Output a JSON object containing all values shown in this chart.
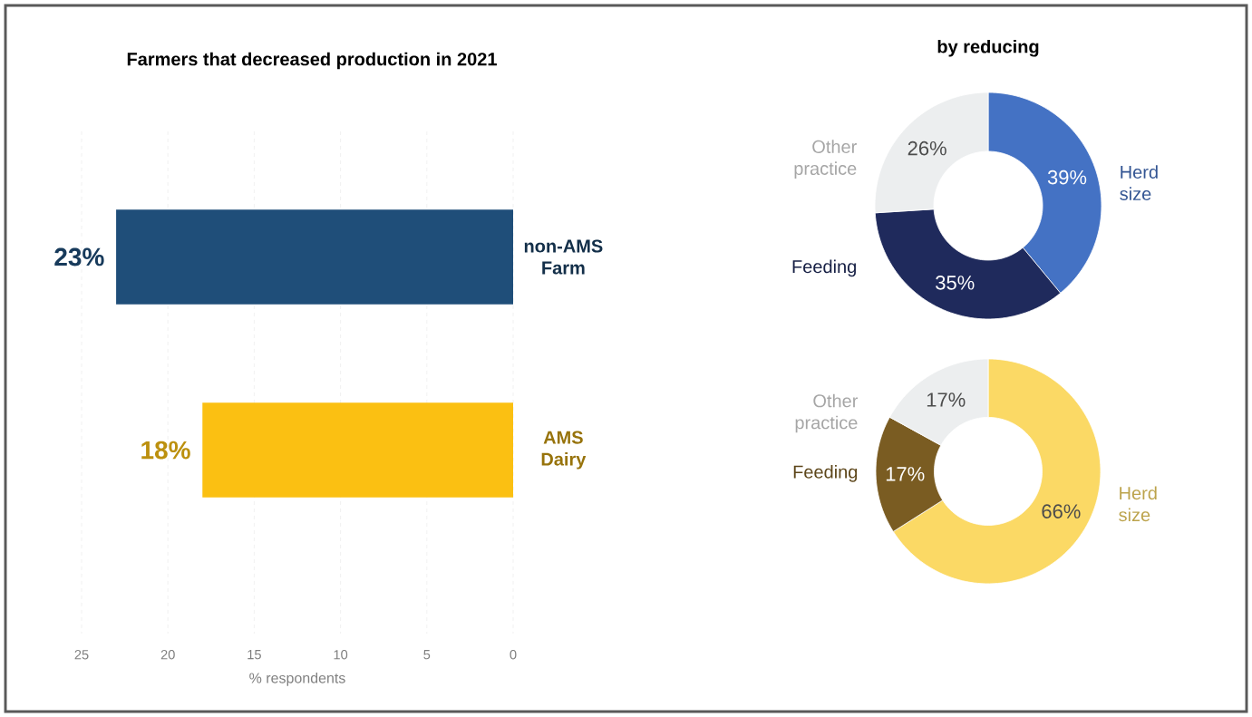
{
  "chart_data": [
    {
      "type": "bar",
      "orientation": "horizontal",
      "title": "Farmers that decreased production in 2021",
      "categories": [
        "non-AMS Farm",
        "AMS Dairy"
      ],
      "values": [
        23,
        18
      ],
      "colors": [
        "#1f4e79",
        "#fbc012"
      ],
      "value_labels": [
        "23%",
        "18%"
      ],
      "xlim": [
        25,
        0
      ],
      "xticks": [
        25,
        20,
        15,
        10,
        5,
        0
      ],
      "xlabel": "% respondents",
      "grid": "x"
    },
    {
      "type": "donut",
      "title": "by reducing",
      "categories": [
        "Herd size",
        "Feeding",
        "Other practice"
      ],
      "values": [
        39,
        35,
        26
      ],
      "colors": [
        "#4472c4",
        "#1f2a5c",
        "#eceeef"
      ],
      "value_labels": [
        "39%",
        "35%",
        "26%"
      ]
    },
    {
      "type": "donut",
      "categories": [
        "Herd size",
        "Feeding",
        "Other practice"
      ],
      "values": [
        66,
        17,
        17
      ],
      "colors": [
        "#fbd965",
        "#7a5c22",
        "#eceeef"
      ],
      "value_labels": [
        "66%",
        "17%",
        "17%"
      ]
    }
  ]
}
